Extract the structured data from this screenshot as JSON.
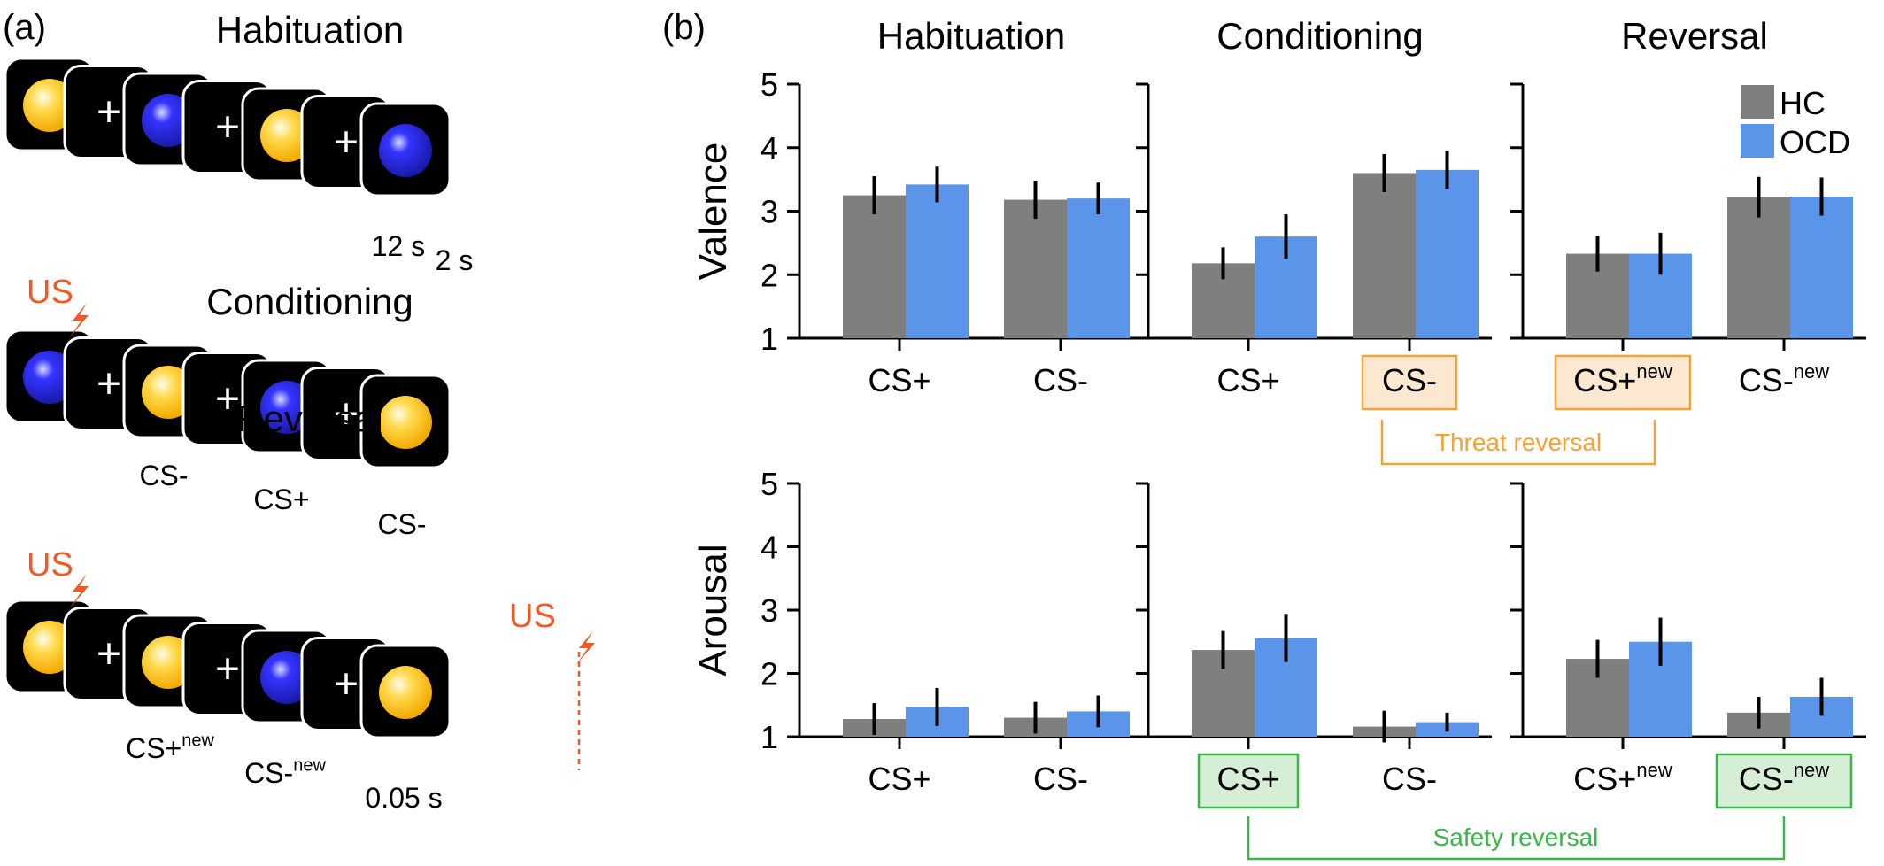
{
  "panel_a": {
    "label": "(a)",
    "sequences": [
      {
        "title": "Habituation",
        "us_label": "",
        "stimuli": [
          "yellow",
          "blue",
          "yellow",
          "blue"
        ],
        "captions": [],
        "durations": [
          "12 s",
          "2 s"
        ],
        "us_marker": ""
      },
      {
        "title": "Conditioning",
        "us_label": "US",
        "stimuli": [
          "blue",
          "yellow",
          "blue",
          "yellow"
        ],
        "captions": [
          "CS-",
          "CS+",
          "CS-"
        ],
        "durations": [],
        "us_marker": ""
      },
      {
        "title": "Reversal",
        "us_label": "US",
        "stimuli": [
          "yellow",
          "yellow",
          "blue",
          "yellow"
        ],
        "captions": [
          "CS+new",
          "CS-new"
        ],
        "durations": [
          "0.05 s"
        ],
        "us_marker": "US"
      }
    ],
    "fixation": "+"
  },
  "panel_b_label": "(b)",
  "colors": {
    "HC": "#7f7f7f",
    "OCD": "#5b95ea",
    "threat": "#f5a234",
    "threat_fill": "#fce8d1",
    "safety": "#39b54a",
    "safety_fill": "#d6eed6",
    "us": "#f15a24",
    "stim_yellow": "#fbbd22",
    "stim_blue": "#2222ee"
  },
  "legend": [
    "HC",
    "OCD"
  ],
  "annotations": {
    "threat": "Threat reversal",
    "safety": "Safety reversal"
  },
  "chart_data": [
    {
      "type": "bar",
      "title": "Habituation",
      "ylabel": "Valence",
      "ylim": [
        1,
        5
      ],
      "yticks": [
        "1",
        "2",
        "3",
        "4",
        "5"
      ],
      "categories": [
        "CS+",
        "CS-"
      ],
      "series": [
        {
          "name": "HC",
          "values": [
            3.25,
            3.18
          ],
          "err": [
            0.3,
            0.3
          ]
        },
        {
          "name": "OCD",
          "values": [
            3.42,
            3.2
          ],
          "err": [
            0.28,
            0.25
          ]
        }
      ]
    },
    {
      "type": "bar",
      "title": "Conditioning",
      "ylabel": "",
      "ylim": [
        1,
        5
      ],
      "yticks": [
        "1",
        "2",
        "3",
        "4",
        "5"
      ],
      "categories": [
        "CS+",
        "CS-"
      ],
      "series": [
        {
          "name": "HC",
          "values": [
            2.18,
            3.6
          ],
          "err": [
            0.25,
            0.3
          ]
        },
        {
          "name": "OCD",
          "values": [
            2.6,
            3.65
          ],
          "err": [
            0.35,
            0.3
          ]
        }
      ]
    },
    {
      "type": "bar",
      "title": "Reversal",
      "ylabel": "",
      "ylim": [
        1,
        5
      ],
      "yticks": [
        "1",
        "2",
        "3",
        "4",
        "5"
      ],
      "categories": [
        "CS+new",
        "CS-new"
      ],
      "series": [
        {
          "name": "HC",
          "values": [
            2.33,
            3.22
          ],
          "err": [
            0.28,
            0.32
          ]
        },
        {
          "name": "OCD",
          "values": [
            2.33,
            3.23
          ],
          "err": [
            0.33,
            0.3
          ]
        }
      ]
    },
    {
      "type": "bar",
      "title": "",
      "ylabel": "Arousal",
      "ylim": [
        1,
        5
      ],
      "yticks": [
        "1",
        "2",
        "3",
        "4",
        "5"
      ],
      "categories": [
        "CS+",
        "CS-"
      ],
      "series": [
        {
          "name": "HC",
          "values": [
            1.28,
            1.3
          ],
          "err": [
            0.25,
            0.25
          ]
        },
        {
          "name": "OCD",
          "values": [
            1.47,
            1.4
          ],
          "err": [
            0.3,
            0.25
          ]
        }
      ]
    },
    {
      "type": "bar",
      "title": "",
      "ylabel": "",
      "ylim": [
        1,
        5
      ],
      "yticks": [
        "1",
        "2",
        "3",
        "4",
        "5"
      ],
      "categories": [
        "CS+",
        "CS-"
      ],
      "series": [
        {
          "name": "HC",
          "values": [
            2.37,
            1.16
          ],
          "err": [
            0.3,
            0.25
          ]
        },
        {
          "name": "OCD",
          "values": [
            2.56,
            1.23
          ],
          "err": [
            0.38,
            0.15
          ]
        }
      ]
    },
    {
      "type": "bar",
      "title": "",
      "ylabel": "",
      "ylim": [
        1,
        5
      ],
      "yticks": [
        "1",
        "2",
        "3",
        "4",
        "5"
      ],
      "categories": [
        "CS+new",
        "CS-new"
      ],
      "series": [
        {
          "name": "HC",
          "values": [
            2.23,
            1.38
          ],
          "err": [
            0.3,
            0.25
          ]
        },
        {
          "name": "OCD",
          "values": [
            2.5,
            1.63
          ],
          "err": [
            0.38,
            0.3
          ]
        }
      ]
    }
  ]
}
